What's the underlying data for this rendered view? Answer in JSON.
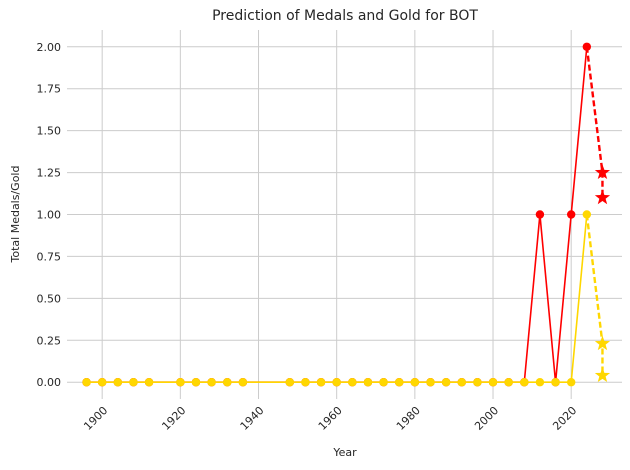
{
  "chart_data": {
    "type": "line",
    "title": "Prediction of Medals and Gold for BOT",
    "xlabel": "Year",
    "ylabel": "Total Medals/Gold",
    "xlim": [
      1891,
      2033
    ],
    "ylim": [
      -0.1,
      2.1
    ],
    "xticks": [
      1900,
      1920,
      1940,
      1960,
      1980,
      2000,
      2020
    ],
    "xtick_labels": [
      "1900",
      "1920",
      "1940",
      "1960",
      "1980",
      "2000",
      "2020"
    ],
    "yticks": [
      0,
      0.25,
      0.5,
      0.75,
      1.0,
      1.25,
      1.5,
      1.75,
      2.0
    ],
    "ytick_labels": [
      "0.00",
      "0.25",
      "0.50",
      "0.75",
      "1.00",
      "1.25",
      "1.50",
      "1.75",
      "2.00"
    ],
    "grid": true,
    "legend": "none",
    "colors": {
      "medals": "#ff0000",
      "gold": "#ffd700"
    },
    "series": [
      {
        "role": "medals-historical",
        "color": "#ff0000",
        "style": "solid",
        "marker": "circle",
        "x": [
          1896,
          1900,
          1904,
          1908,
          1912,
          1920,
          1924,
          1928,
          1932,
          1936,
          1948,
          1952,
          1956,
          1960,
          1964,
          1968,
          1972,
          1976,
          1980,
          1984,
          1988,
          1992,
          1996,
          2000,
          2004,
          2008,
          2012,
          2016,
          2020,
          2024
        ],
        "y": [
          0,
          0,
          0,
          0,
          0,
          0,
          0,
          0,
          0,
          0,
          0,
          0,
          0,
          0,
          0,
          0,
          0,
          0,
          0,
          0,
          0,
          0,
          0,
          0,
          0,
          0,
          1,
          0,
          1,
          2
        ]
      },
      {
        "role": "gold-historical",
        "color": "#ffd700",
        "style": "solid",
        "marker": "circle",
        "x": [
          1896,
          1900,
          1904,
          1908,
          1912,
          1920,
          1924,
          1928,
          1932,
          1936,
          1948,
          1952,
          1956,
          1960,
          1964,
          1968,
          1972,
          1976,
          1980,
          1984,
          1988,
          1992,
          1996,
          2000,
          2004,
          2008,
          2012,
          2016,
          2020,
          2024
        ],
        "y": [
          0,
          0,
          0,
          0,
          0,
          0,
          0,
          0,
          0,
          0,
          0,
          0,
          0,
          0,
          0,
          0,
          0,
          0,
          0,
          0,
          0,
          0,
          0,
          0,
          0,
          0,
          0,
          0,
          0,
          1
        ]
      },
      {
        "role": "medals-prediction",
        "color": "#ff0000",
        "style": "dashed",
        "marker": "star",
        "marker_first": false,
        "x": [
          2024,
          2028,
          2028
        ],
        "y": [
          2,
          1.25,
          1.1
        ]
      },
      {
        "role": "gold-prediction",
        "color": "#ffd700",
        "style": "dashed",
        "marker": "star",
        "marker_first": false,
        "x": [
          2024,
          2028,
          2028
        ],
        "y": [
          1,
          0.23,
          0.04
        ]
      }
    ]
  }
}
